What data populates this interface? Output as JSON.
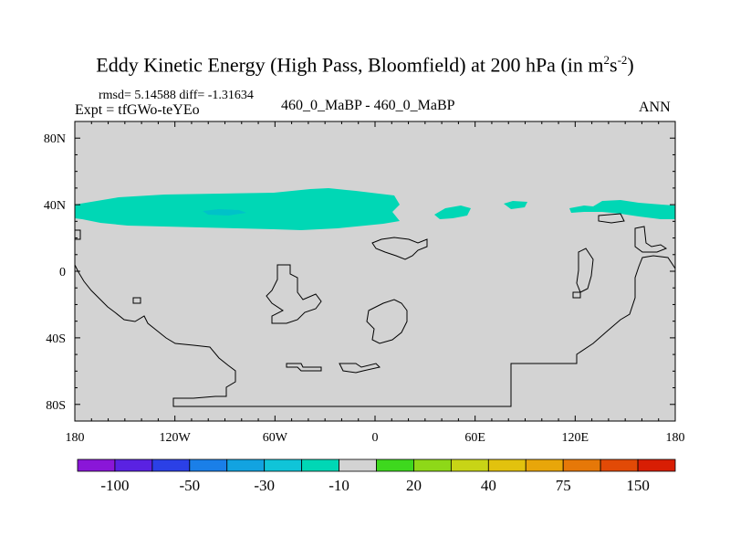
{
  "header": {
    "title_main": "Eddy Kinetic Energy (High Pass, Bloomfield) at 200 hPa (in m",
    "title_sup1": "2",
    "title_mid": "s",
    "title_sup2": "-2",
    "title_end": ")",
    "rmsd_text": "rmsd= 5.14588 diff= -1.31634",
    "expt_text": "Expt = tfGWo-teYEo",
    "center_text": "460_0_MaBP - 460_0_MaBP",
    "season_text": "ANN"
  },
  "colors": {
    "background_field": "#d3d3d3",
    "anomaly_fill": "#00d7b5",
    "anomaly_inner": "#00c2c8",
    "coastline": "#000000"
  },
  "chart_data": {
    "type": "heatmap",
    "title": "Eddy Kinetic Energy (High Pass, Bloomfield) at 200 hPa (in m2s-2)",
    "xlabel": "",
    "ylabel": "",
    "xlim": [
      -180,
      180
    ],
    "ylim": [
      -90,
      90
    ],
    "x_ticks": [
      {
        "value": -180,
        "label": "180"
      },
      {
        "value": -120,
        "label": "120W"
      },
      {
        "value": -60,
        "label": "60W"
      },
      {
        "value": 0,
        "label": "0"
      },
      {
        "value": 60,
        "label": "60E"
      },
      {
        "value": 120,
        "label": "120E"
      },
      {
        "value": 180,
        "label": "180"
      }
    ],
    "y_ticks": [
      {
        "value": 80,
        "label": "80N"
      },
      {
        "value": 40,
        "label": "40N"
      },
      {
        "value": 0,
        "label": "0"
      },
      {
        "value": -40,
        "label": "40S"
      },
      {
        "value": -80,
        "label": "80S"
      }
    ],
    "colorbar": {
      "colors": [
        "#8a16d8",
        "#5a22e2",
        "#2b40e6",
        "#1a7fe8",
        "#12a3e0",
        "#10c4d8",
        "#00d7b5",
        "#d3d3d3",
        "#3ed81e",
        "#8ed818",
        "#c8d416",
        "#e2c20e",
        "#e8a60a",
        "#e67808",
        "#e24a06",
        "#d81e04"
      ],
      "labels": [
        "-100",
        "-50",
        "-30",
        "-10",
        "20",
        "40",
        "75",
        "150"
      ]
    }
  }
}
